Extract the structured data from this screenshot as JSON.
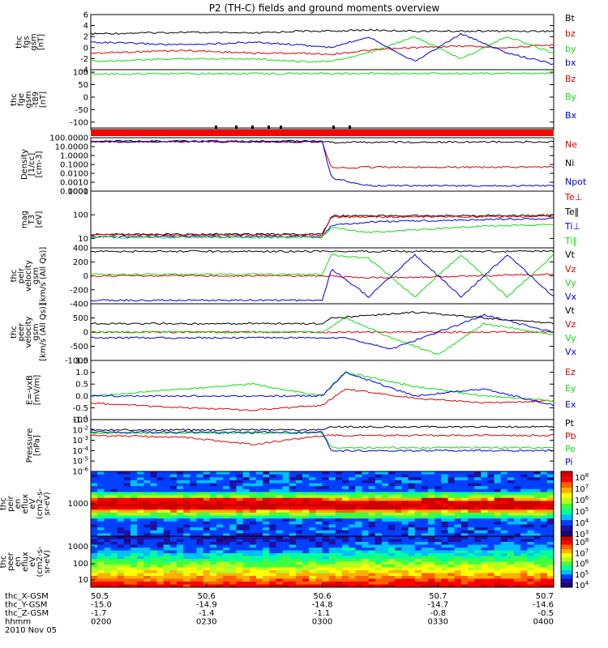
{
  "title": "P2 (TH-C) fields and ground moments overview",
  "colors": {
    "black": "#000000",
    "red": "#dd0000",
    "green": "#11dd11",
    "blue": "#0000dd"
  },
  "footer": {
    "rows": [
      {
        "label": "thc_X-GSM",
        "values": [
          "50.5",
          "50.6",
          "50.6",
          "50.7",
          "50.7"
        ]
      },
      {
        "label": "thc_Y-GSM",
        "values": [
          "-15.0",
          "-14.9",
          "-14.8",
          "-14.7",
          "-14.6"
        ]
      },
      {
        "label": "thc_Z-GSM",
        "values": [
          "-1.7",
          "-1.4",
          "-1.1",
          "-0.8",
          "-0.5"
        ]
      },
      {
        "label": "hhmm",
        "values": [
          "0200",
          "0230",
          "0300",
          "0330",
          "0400"
        ]
      }
    ],
    "date": "2010 Nov 05"
  },
  "chart_data": [
    {
      "type": "line",
      "ylabel": [
        "thc",
        "fgs",
        "gsm",
        "[nT]"
      ],
      "yticks": [
        "6",
        "4",
        "2",
        "0",
        "-2",
        "-4"
      ],
      "ylim": [
        -4,
        6
      ],
      "legend": [
        {
          "text": "Bt",
          "color": "black"
        },
        {
          "text": "bz",
          "color": "red"
        },
        {
          "text": "by",
          "color": "green"
        },
        {
          "text": "bx",
          "color": "blue"
        }
      ],
      "series": [
        {
          "name": "Bt",
          "color": "black",
          "x": [
            0,
            0.2,
            0.35,
            0.45,
            0.52,
            0.6,
            0.7,
            0.8,
            0.9,
            1
          ],
          "y": [
            2.5,
            2.8,
            2.6,
            3.0,
            3.0,
            3.2,
            3.0,
            3.0,
            3.0,
            3.0
          ]
        },
        {
          "name": "bz",
          "color": "red",
          "x": [
            0,
            0.2,
            0.35,
            0.45,
            0.52,
            0.6,
            0.7,
            0.8,
            0.9,
            1
          ],
          "y": [
            -1.0,
            -0.5,
            -1.0,
            -1.0,
            -1.2,
            -0.5,
            0.0,
            0.3,
            0.0,
            0.5
          ]
        },
        {
          "name": "by",
          "color": "green",
          "x": [
            0,
            0.2,
            0.35,
            0.45,
            0.52,
            0.6,
            0.7,
            0.8,
            0.9,
            1
          ],
          "y": [
            -2.5,
            -2.0,
            -2.0,
            -2.5,
            -2.5,
            -1.0,
            2.0,
            -2.0,
            2.0,
            -1.0
          ]
        },
        {
          "name": "bx",
          "color": "blue",
          "x": [
            0,
            0.2,
            0.35,
            0.45,
            0.52,
            0.6,
            0.7,
            0.8,
            0.9,
            1
          ],
          "y": [
            1.0,
            0.5,
            1.0,
            0.5,
            0.0,
            2.0,
            -2.5,
            2.5,
            -1.0,
            -3.0
          ]
        }
      ]
    },
    {
      "type": "line",
      "ylabel": [
        "thc",
        "fge",
        "gsm",
        "-t89",
        "[nT]"
      ],
      "yticks": [
        "100",
        "50",
        "0",
        "-50",
        "-100"
      ],
      "ylim": [
        -130,
        110
      ],
      "legend": [
        {
          "text": "Bz",
          "color": "red"
        },
        {
          "text": "By",
          "color": "green"
        },
        {
          "text": "Bx",
          "color": "blue"
        }
      ],
      "series": [
        {
          "name": "By",
          "color": "green",
          "x": [
            0,
            0.65
          ],
          "y": [
            93,
            95
          ]
        }
      ]
    },
    {
      "type": "line",
      "ylabel": [
        "Density",
        "[1/cc]",
        "[cm-3]"
      ],
      "yticks": [
        "100.0000",
        "10.0000",
        "1.0000",
        "0.1000",
        "0.0100",
        "0.0010",
        "0.0001"
      ],
      "ylim": [
        0.0001,
        100
      ],
      "log": true,
      "legend": [
        {
          "text": "Ne",
          "color": "red"
        },
        {
          "text": "Ni",
          "color": "black"
        },
        {
          "text": "Npot",
          "color": "blue"
        }
      ],
      "series": [
        {
          "name": "Ni",
          "color": "black",
          "x": [
            0,
            0.5,
            0.52,
            1
          ],
          "y": [
            40,
            40,
            30,
            35
          ]
        },
        {
          "name": "Ne",
          "color": "red",
          "x": [
            0,
            0.5,
            0.52,
            0.6,
            1
          ],
          "y": [
            35,
            35,
            0.04,
            0.05,
            0.05
          ]
        },
        {
          "name": "Npot",
          "color": "blue",
          "x": [
            0,
            0.5,
            0.52,
            0.6,
            1
          ],
          "y": [
            35,
            35,
            0.003,
            0.0004,
            0.0004
          ]
        }
      ]
    },
    {
      "type": "line",
      "ylabel": [
        "mag",
        "T3",
        "[eV]"
      ],
      "yticks": [
        "1000",
        "100",
        "10"
      ],
      "ylim": [
        4,
        1000
      ],
      "log": true,
      "legend": [
        {
          "text": "Te⊥",
          "color": "red"
        },
        {
          "text": "Te‖",
          "color": "black"
        },
        {
          "text": "Ti⊥",
          "color": "blue"
        },
        {
          "text": "Ti‖",
          "color": "green"
        }
      ],
      "series": [
        {
          "name": "Te‖",
          "color": "black",
          "x": [
            0,
            0.5,
            0.52,
            1
          ],
          "y": [
            15,
            15,
            90,
            95
          ]
        },
        {
          "name": "Te⊥",
          "color": "red",
          "x": [
            0,
            0.5,
            0.52,
            1
          ],
          "y": [
            14,
            14,
            80,
            85
          ]
        },
        {
          "name": "Ti⊥",
          "color": "blue",
          "x": [
            0,
            0.5,
            0.52,
            0.6,
            0.8,
            1
          ],
          "y": [
            12,
            12,
            35,
            50,
            60,
            70
          ]
        },
        {
          "name": "Ti‖",
          "color": "green",
          "x": [
            0,
            0.5,
            0.52,
            0.6,
            0.8,
            1
          ],
          "y": [
            11,
            11,
            30,
            18,
            30,
            40
          ]
        }
      ]
    },
    {
      "type": "line",
      "ylabel": [
        "thc",
        "peir",
        "velocity",
        "gsm",
        "[km/s (All Qs)]"
      ],
      "yticks": [
        "400",
        "200",
        "0",
        "-200",
        "-400"
      ],
      "ylim": [
        -400,
        400
      ],
      "legend": [
        {
          "text": "Vt",
          "color": "black"
        },
        {
          "text": "Vz",
          "color": "red"
        },
        {
          "text": "Vy",
          "color": "green"
        },
        {
          "text": "Vx",
          "color": "blue"
        }
      ],
      "series": [
        {
          "name": "Vt",
          "color": "black",
          "x": [
            0,
            1
          ],
          "y": [
            350,
            350
          ]
        },
        {
          "name": "Vz",
          "color": "red",
          "x": [
            0,
            0.5,
            0.6,
            1
          ],
          "y": [
            0,
            0,
            -30,
            20
          ]
        },
        {
          "name": "Vy",
          "color": "green",
          "x": [
            0,
            0.5,
            0.52,
            0.6,
            0.7,
            0.8,
            0.9,
            1
          ],
          "y": [
            20,
            20,
            300,
            250,
            -300,
            300,
            -300,
            300
          ]
        },
        {
          "name": "Vx",
          "color": "blue",
          "x": [
            0,
            0.5,
            0.52,
            0.6,
            0.7,
            0.8,
            0.9,
            1
          ],
          "y": [
            -350,
            -350,
            100,
            -300,
            300,
            -300,
            300,
            -300
          ]
        }
      ]
    },
    {
      "type": "line",
      "ylabel": [
        "thc",
        "peer",
        "velocity",
        "gsm",
        "[km/s (All Qs)]"
      ],
      "yticks": [
        "500",
        "0",
        "-500",
        "-1000"
      ],
      "ylim": [
        -1000,
        1000
      ],
      "legend": [
        {
          "text": "Vt",
          "color": "black"
        },
        {
          "text": "Vz",
          "color": "red"
        },
        {
          "text": "Vy",
          "color": "green"
        },
        {
          "text": "Vx",
          "color": "blue"
        }
      ],
      "series": [
        {
          "name": "Vt",
          "color": "black",
          "x": [
            0,
            0.5,
            0.52,
            0.7,
            0.85,
            1
          ],
          "y": [
            300,
            300,
            500,
            700,
            500,
            300
          ]
        },
        {
          "name": "Vz",
          "color": "red",
          "x": [
            0,
            0.5,
            0.7,
            1
          ],
          "y": [
            0,
            0,
            0,
            0
          ]
        },
        {
          "name": "Vy",
          "color": "green",
          "x": [
            0,
            0.5,
            0.55,
            0.65,
            0.75,
            0.85,
            1
          ],
          "y": [
            0,
            0,
            500,
            -200,
            -800,
            300,
            -100
          ]
        },
        {
          "name": "Vx",
          "color": "blue",
          "x": [
            0,
            0.5,
            0.55,
            0.65,
            0.75,
            0.85,
            1
          ],
          "y": [
            -200,
            -200,
            -200,
            -600,
            0,
            600,
            0
          ]
        }
      ]
    },
    {
      "type": "line",
      "ylabel": [
        "E=-vxB",
        "[mV/m]"
      ],
      "yticks": [
        "1.5",
        "1.0",
        "0.5",
        "0.0",
        "-0.5",
        "-1.0"
      ],
      "ylim": [
        -1.0,
        1.5
      ],
      "legend": [
        {
          "text": "Ez",
          "color": "red"
        },
        {
          "text": "Ey",
          "color": "green"
        },
        {
          "text": "Ex",
          "color": "blue"
        }
      ],
      "series": [
        {
          "name": "Ez",
          "color": "red",
          "x": [
            0,
            0.2,
            0.35,
            0.5,
            0.55,
            0.7,
            0.85,
            1
          ],
          "y": [
            -0.3,
            -0.5,
            -0.6,
            -0.4,
            0.3,
            -0.1,
            -0.3,
            -0.2
          ]
        },
        {
          "name": "Ey",
          "color": "green",
          "x": [
            0,
            0.2,
            0.35,
            0.5,
            0.55,
            0.7,
            0.85,
            1
          ],
          "y": [
            0.0,
            0.3,
            0.5,
            0.0,
            1.0,
            0.4,
            0.0,
            -0.2
          ]
        },
        {
          "name": "Ex",
          "color": "blue",
          "x": [
            0,
            0.2,
            0.35,
            0.5,
            0.55,
            0.7,
            0.85,
            1
          ],
          "y": [
            0.0,
            0.0,
            0.0,
            0.0,
            1.0,
            0.0,
            0.3,
            -0.4
          ]
        }
      ]
    },
    {
      "type": "line",
      "ylabel": [
        "Pressure",
        "[nPa]"
      ],
      "yticks": [
        "10^-1",
        "10^-2",
        "10^-3",
        "10^-4",
        "10^-5",
        "10^-6"
      ],
      "ylim": [
        1e-06,
        0.1
      ],
      "log": true,
      "legend": [
        {
          "text": "Pt",
          "color": "black"
        },
        {
          "text": "Pb",
          "color": "red"
        },
        {
          "text": "Pe",
          "color": "green"
        },
        {
          "text": "Pi",
          "color": "blue"
        }
      ],
      "series": [
        {
          "name": "Pt",
          "color": "black",
          "x": [
            0,
            0.5,
            0.52,
            1
          ],
          "y": [
            0.01,
            0.01,
            0.02,
            0.02
          ]
        },
        {
          "name": "Pb",
          "color": "red",
          "x": [
            0,
            0.2,
            0.35,
            0.5,
            1
          ],
          "y": [
            0.003,
            0.002,
            0.0004,
            0.003,
            0.003
          ]
        },
        {
          "name": "Pe",
          "color": "green",
          "x": [
            0,
            0.5,
            0.52,
            1
          ],
          "y": [
            0.005,
            0.005,
            0.0002,
            0.0002
          ]
        },
        {
          "name": "Pi",
          "color": "blue",
          "x": [
            0,
            0.5,
            0.52,
            1
          ],
          "y": [
            0.006,
            0.006,
            0.0001,
            0.0001
          ]
        }
      ]
    },
    {
      "type": "heatmap",
      "ylabel": [
        "thc",
        "peir",
        "en",
        "eflux",
        "eV",
        "(cm2-s-",
        "sr-eV)"
      ],
      "yticks": [
        "1000"
      ],
      "colorbar": [
        "10^8",
        "10^7",
        "10^6",
        "10^5",
        "10^4",
        "10^3"
      ]
    },
    {
      "type": "heatmap",
      "ylabel": [
        "thc",
        "peer",
        "en",
        "eflux",
        "eV",
        "(cm2-s-",
        "sr-eV)"
      ],
      "yticks": [
        "1000",
        "100",
        "10"
      ],
      "colorbar": [
        "10^8",
        "10^7",
        "10^6",
        "10^5",
        "10^4"
      ]
    }
  ]
}
